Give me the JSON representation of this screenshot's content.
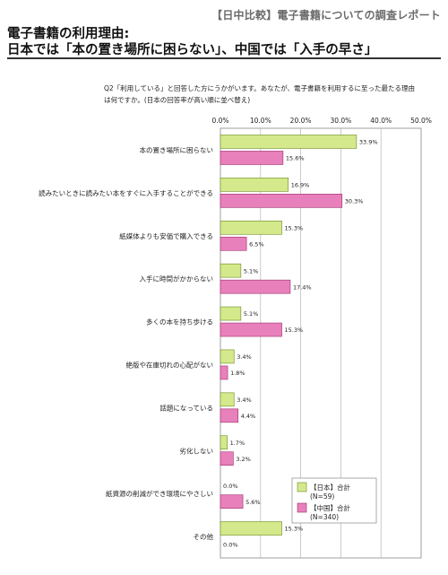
{
  "header": {
    "page_label": "【日中比較】電子書籍についての調査レポート",
    "title_line1": "電子書籍の利用理由:",
    "title_line2": "日本では「本の置き場所に困らない」、中国では「入手の早さ」",
    "question_line1": "Q2「利用している」と回答した方にうかがいます。あなたが、電子書籍を利用するに至った最たる理由",
    "question_line2": "は何ですか。(日本の回答率が高い順に並べ替え)"
  },
  "colors": {
    "japan_fill": "#d4e98c",
    "japan_stroke": "#6c8a1e",
    "china_fill": "#e880bb",
    "china_stroke": "#9b2e6a",
    "grid": "#b5b5b5"
  },
  "chart_data": {
    "type": "bar",
    "orientation": "horizontal",
    "xlim": [
      0,
      50
    ],
    "xticks": [
      "0.0%",
      "10.0%",
      "20.0%",
      "30.0%",
      "40.0%",
      "50.0%"
    ],
    "tick_values": [
      0,
      10,
      20,
      30,
      40,
      50
    ],
    "categories": [
      "本の置き場所に困らない",
      "読みたいときに読みたい本をすぐに入手することができる",
      "紙媒体よりも安価で購入できる",
      "入手に時間がかからない",
      "多くの本を持ち歩ける",
      "絶版や在庫切れの心配がない",
      "話題になっている",
      "劣化しない",
      "紙資源の削減ができ環境にやさしい",
      "その他"
    ],
    "series": [
      {
        "name": "【日本】合計",
        "sample": "(N=59)",
        "values": [
          33.9,
          16.9,
          15.3,
          5.1,
          5.1,
          3.4,
          3.4,
          1.7,
          0.0,
          15.3
        ],
        "labels": [
          "33.9%",
          "16.9%",
          "15.3%",
          "5.1%",
          "5.1%",
          "3.4%",
          "3.4%",
          "1.7%",
          "0.0%",
          "15.3%"
        ]
      },
      {
        "name": "【中国】合計",
        "sample": "(N=340)",
        "values": [
          15.6,
          30.3,
          6.5,
          17.4,
          15.3,
          1.8,
          4.4,
          3.2,
          5.6,
          0.0
        ],
        "labels": [
          "15.6%",
          "30.3%",
          "6.5%",
          "17.4%",
          "15.3%",
          "1.8%",
          "4.4%",
          "3.2%",
          "5.6%",
          "0.0%"
        ]
      }
    ],
    "legend_position": "bottom-right",
    "grid": true
  }
}
